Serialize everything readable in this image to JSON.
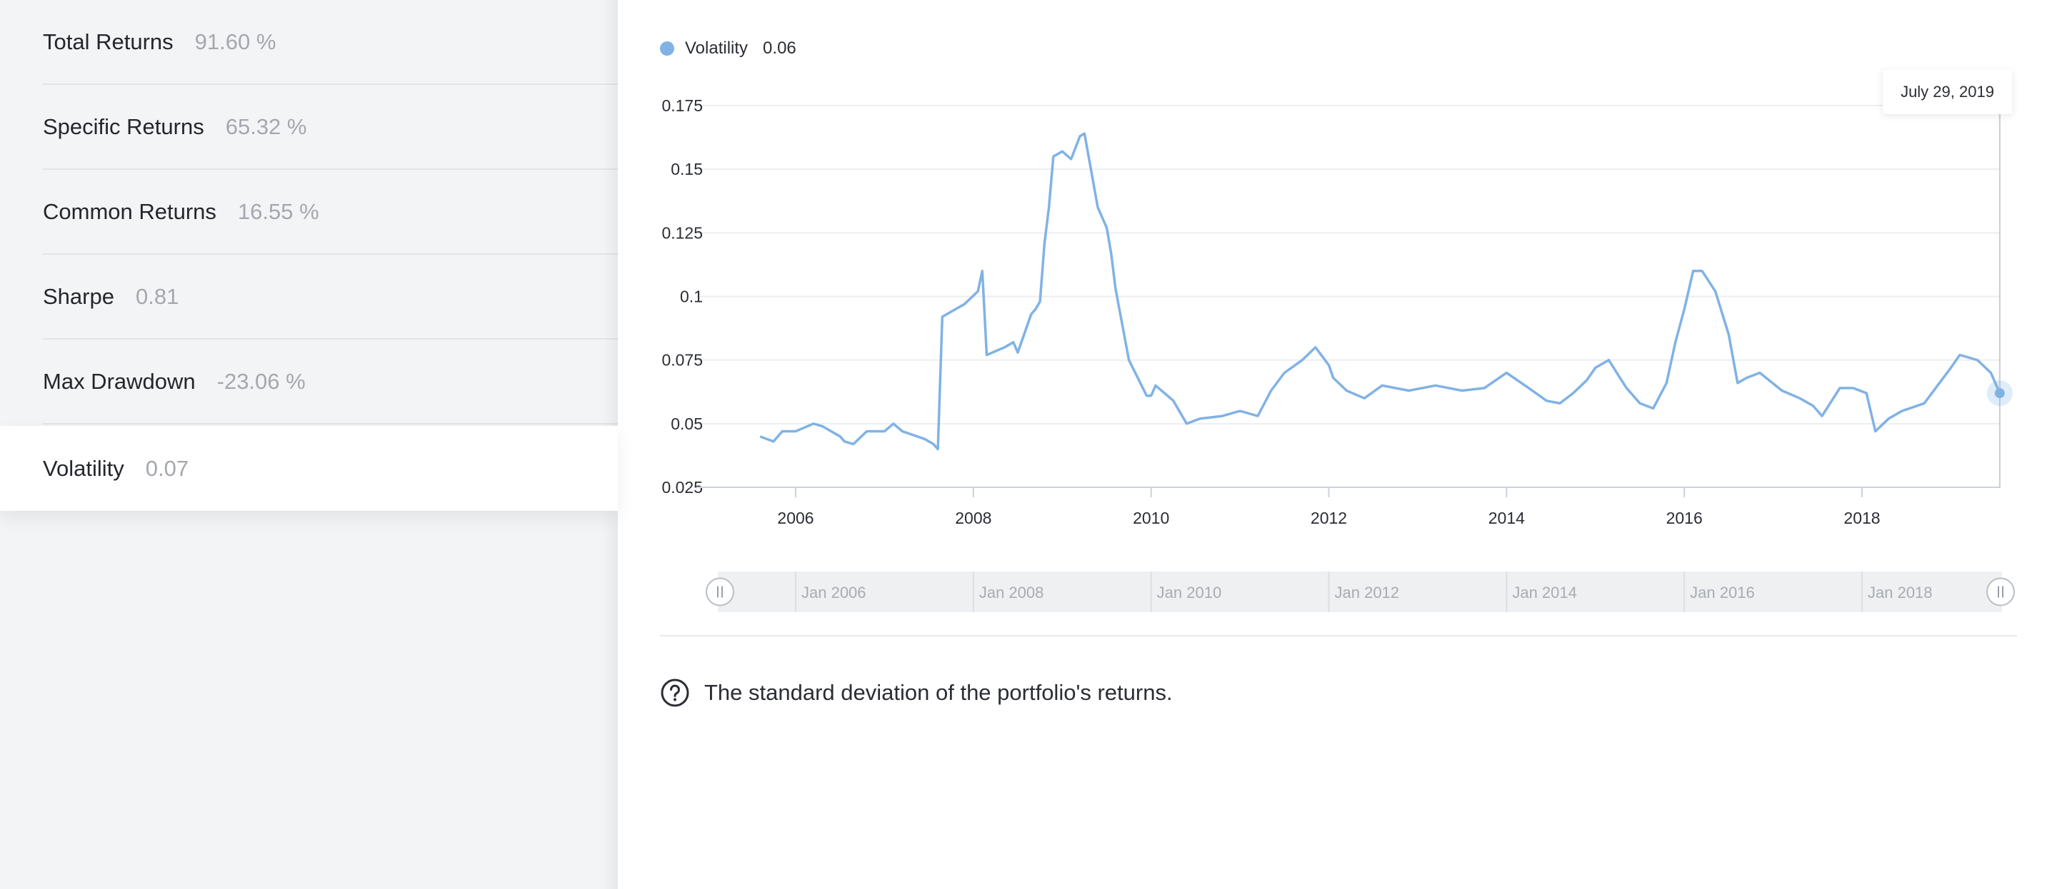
{
  "metrics": [
    {
      "label": "Total Returns",
      "value": "91.60 %"
    },
    {
      "label": "Specific Returns",
      "value": "65.32 %"
    },
    {
      "label": "Common Returns",
      "value": "16.55 %"
    },
    {
      "label": "Sharpe",
      "value": "0.81"
    },
    {
      "label": "Max Drawdown",
      "value": "-23.06 %"
    },
    {
      "label": "Volatility",
      "value": "0.07"
    }
  ],
  "active_metric": "Volatility",
  "legend": {
    "name": "Volatility",
    "value": "0.06"
  },
  "tooltip": {
    "date": "July 29, 2019"
  },
  "description": "The standard deviation of the portfolio's returns.",
  "colors": {
    "series": "#80b2e6",
    "sidebar_bg": "#f3f4f6",
    "navigator_bg": "#eef0f2"
  },
  "navigator": {
    "labels": [
      "Jan 2006",
      "Jan 2008",
      "Jan 2010",
      "Jan 2012",
      "Jan 2014",
      "Jan 2016",
      "Jan 2018"
    ]
  },
  "chart_data": {
    "type": "line",
    "title": "",
    "xlabel": "",
    "ylabel": "",
    "x_ticks": [
      "2006",
      "2008",
      "2010",
      "2012",
      "2014",
      "2016",
      "2018"
    ],
    "y_ticks": [
      "0.025",
      "0.05",
      "0.075",
      "0.1",
      "0.125",
      "0.15",
      "0.175"
    ],
    "xlim": [
      2005.0,
      2019.6
    ],
    "ylim": [
      0.025,
      0.175
    ],
    "grid": true,
    "legend": "top-left",
    "series": [
      {
        "name": "Volatility",
        "x": [
          2005.6,
          2005.75,
          2005.85,
          2006.0,
          2006.2,
          2006.3,
          2006.5,
          2006.55,
          2006.65,
          2006.8,
          2007.0,
          2007.1,
          2007.2,
          2007.45,
          2007.55,
          2007.6,
          2007.65,
          2007.8,
          2007.9,
          2008.05,
          2008.1,
          2008.15,
          2008.35,
          2008.45,
          2008.5,
          2008.65,
          2008.7,
          2008.75,
          2008.8,
          2008.85,
          2008.9,
          2009.0,
          2009.1,
          2009.2,
          2009.25,
          2009.4,
          2009.5,
          2009.55,
          2009.6,
          2009.75,
          2009.85,
          2009.95,
          2010.0,
          2010.05,
          2010.25,
          2010.4,
          2010.55,
          2010.8,
          2011.0,
          2011.2,
          2011.35,
          2011.5,
          2011.7,
          2011.85,
          2012.0,
          2012.05,
          2012.2,
          2012.4,
          2012.6,
          2012.9,
          2013.2,
          2013.5,
          2013.75,
          2014.0,
          2014.25,
          2014.45,
          2014.6,
          2014.75,
          2014.9,
          2015.0,
          2015.15,
          2015.35,
          2015.5,
          2015.65,
          2015.8,
          2015.9,
          2016.0,
          2016.1,
          2016.2,
          2016.35,
          2016.5,
          2016.6,
          2016.7,
          2016.85,
          2017.1,
          2017.3,
          2017.45,
          2017.55,
          2017.75,
          2017.9,
          2018.05,
          2018.15,
          2018.3,
          2018.45,
          2018.7,
          2018.85,
          2019.0,
          2019.1,
          2019.3,
          2019.45,
          2019.55
        ],
        "values": [
          0.045,
          0.043,
          0.047,
          0.047,
          0.05,
          0.049,
          0.045,
          0.043,
          0.042,
          0.047,
          0.047,
          0.05,
          0.047,
          0.044,
          0.042,
          0.04,
          0.092,
          0.095,
          0.097,
          0.102,
          0.11,
          0.077,
          0.08,
          0.082,
          0.078,
          0.093,
          0.095,
          0.098,
          0.121,
          0.135,
          0.155,
          0.157,
          0.154,
          0.163,
          0.164,
          0.135,
          0.127,
          0.117,
          0.103,
          0.075,
          0.068,
          0.061,
          0.061,
          0.065,
          0.059,
          0.05,
          0.052,
          0.053,
          0.055,
          0.053,
          0.063,
          0.07,
          0.075,
          0.08,
          0.073,
          0.068,
          0.063,
          0.06,
          0.065,
          0.063,
          0.065,
          0.063,
          0.064,
          0.07,
          0.064,
          0.059,
          0.058,
          0.062,
          0.067,
          0.072,
          0.075,
          0.064,
          0.058,
          0.056,
          0.066,
          0.082,
          0.095,
          0.11,
          0.11,
          0.102,
          0.085,
          0.066,
          0.068,
          0.07,
          0.063,
          0.06,
          0.057,
          0.053,
          0.064,
          0.064,
          0.062,
          0.047,
          0.052,
          0.055,
          0.058,
          0.065,
          0.072,
          0.077,
          0.075,
          0.07,
          0.062
        ]
      }
    ]
  }
}
